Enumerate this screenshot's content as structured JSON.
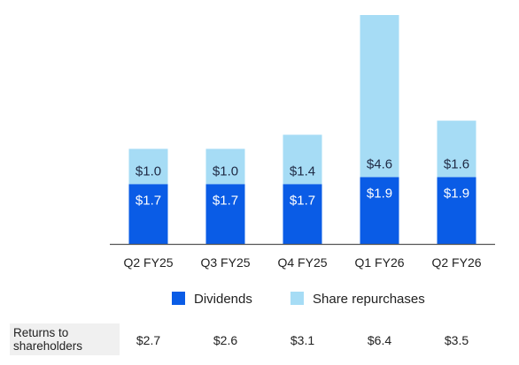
{
  "chart_data": {
    "type": "bar",
    "stacked": true,
    "categories": [
      "Q2 FY25",
      "Q3 FY25",
      "Q4 FY25",
      "Q1 FY26",
      "Q2 FY26"
    ],
    "series": [
      {
        "name": "Dividends",
        "color": "#0a5ce6",
        "values": [
          1.7,
          1.7,
          1.7,
          1.9,
          1.9
        ],
        "labels": [
          "$1.7",
          "$1.7",
          "$1.7",
          "$1.9",
          "$1.9"
        ]
      },
      {
        "name": "Share repurchases",
        "color": "#a6dcf5",
        "values": [
          1.0,
          1.0,
          1.4,
          4.6,
          1.6
        ],
        "labels": [
          "$1.0",
          "$1.0",
          "$1.4",
          "$4.6",
          "$1.6"
        ]
      }
    ],
    "legend": "bottom-center",
    "grid": false,
    "ylim": [
      0,
      6.5
    ],
    "table_row": {
      "label": "Returns to shareholders",
      "values": [
        "$2.7",
        "$2.6",
        "$3.1",
        "$6.4",
        "$3.5"
      ]
    }
  },
  "colors": {
    "axis": "#555555",
    "label_text": "#1f2a44",
    "tick_text": "#222222"
  }
}
